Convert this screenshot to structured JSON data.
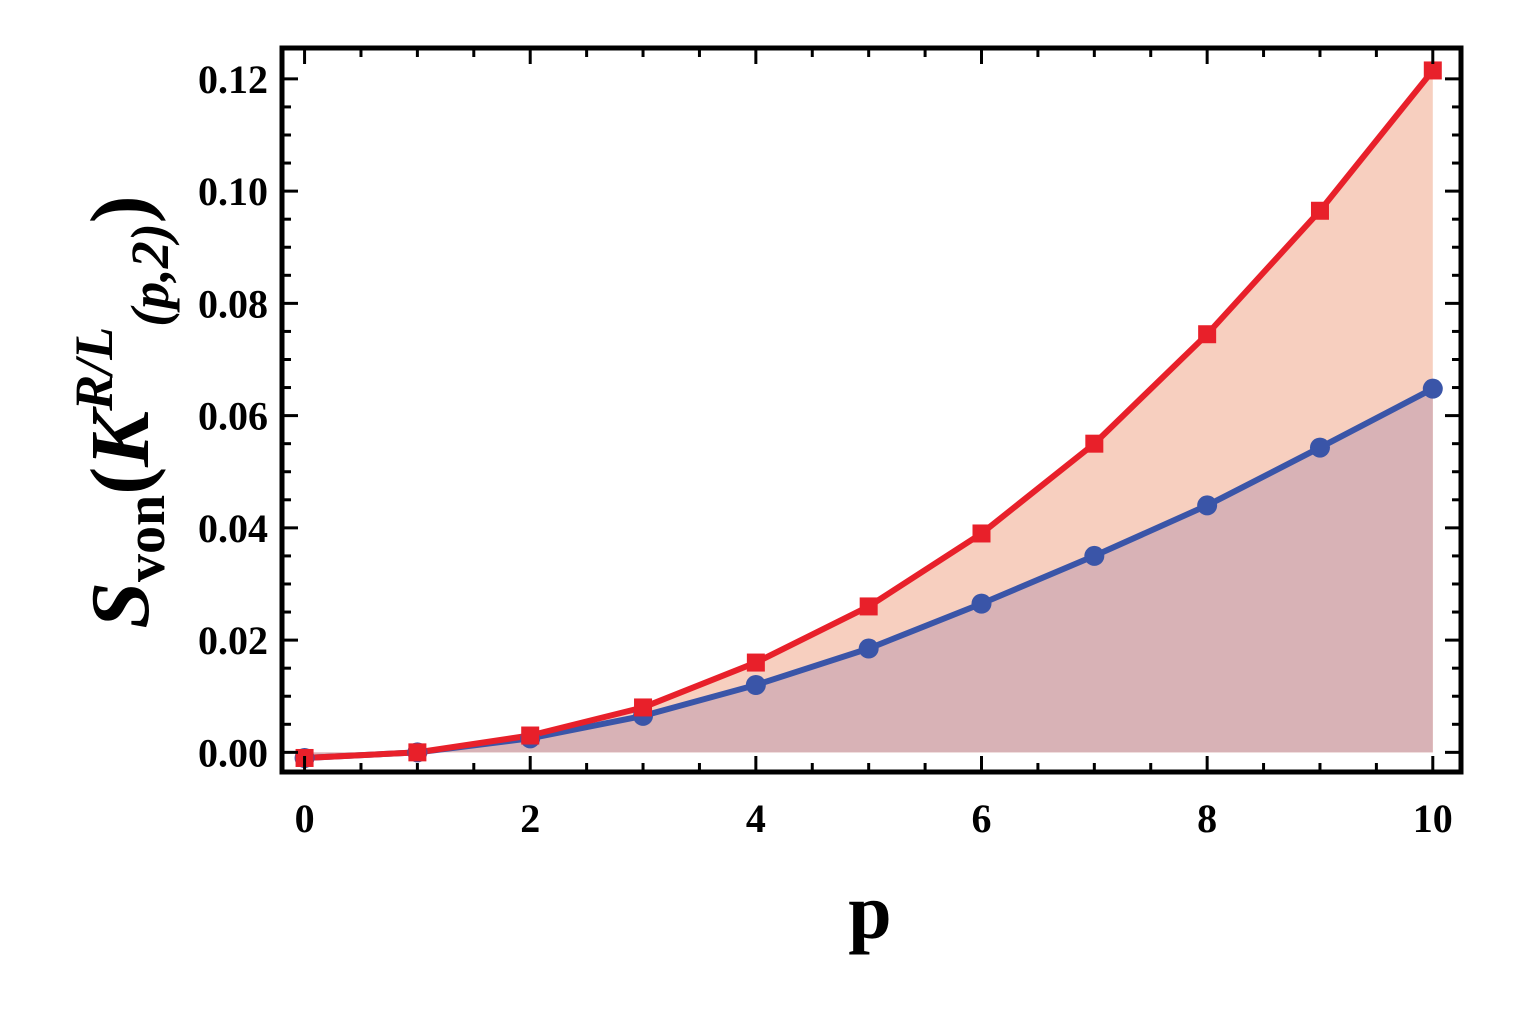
{
  "chart_data": {
    "type": "line",
    "xlabel": "p",
    "ylabel": {
      "main": "S",
      "sub": "von",
      "paren_open": "(",
      "base": "K",
      "sup": "R/L",
      "subscript": "(p,2)",
      "paren_close": ")"
    },
    "xlim": [
      -0.2,
      10.25
    ],
    "ylim": [
      -0.0035,
      0.1255
    ],
    "x_ticks": [
      0,
      2,
      4,
      6,
      8,
      10
    ],
    "x_tick_labels": [
      "0",
      "2",
      "4",
      "6",
      "8",
      "10"
    ],
    "y_ticks": [
      0,
      0.02,
      0.04,
      0.06,
      0.08,
      0.1,
      0.12
    ],
    "y_tick_labels": [
      "0.00",
      "0.02",
      "0.04",
      "0.06",
      "0.08",
      "0.10",
      "0.12"
    ],
    "grid": false,
    "legend": "none",
    "x": [
      0,
      1,
      2,
      3,
      4,
      5,
      6,
      7,
      8,
      9,
      10
    ],
    "series": [
      {
        "marker": "square",
        "color": "#e8202a",
        "fill_color": "#f7cfbf",
        "values": [
          -0.001,
          0.0,
          0.003,
          0.008,
          0.016,
          0.026,
          0.039,
          0.055,
          0.0745,
          0.0965,
          0.1215
        ]
      },
      {
        "marker": "circle",
        "color": "#3a55a8",
        "fill_color": "#d8b2b6",
        "values": [
          -0.001,
          0.0,
          0.0025,
          0.0065,
          0.012,
          0.0185,
          0.0265,
          0.035,
          0.044,
          0.0543,
          0.0648
        ]
      }
    ]
  }
}
